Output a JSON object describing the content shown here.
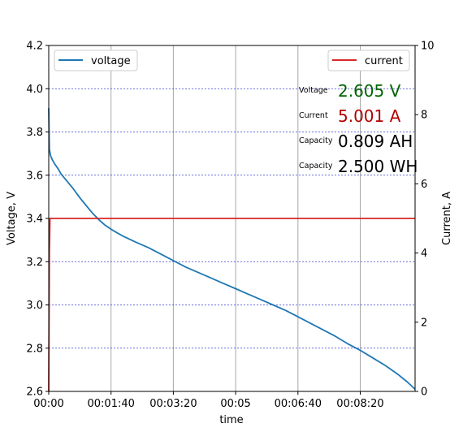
{
  "chart_data": {
    "type": "line",
    "xlabel": "time",
    "ylabel_left": "Voltage, V",
    "ylabel_right": "Current, A",
    "x_unit": "seconds",
    "xlim": [
      0,
      588
    ],
    "ylim_left": [
      2.6,
      4.2
    ],
    "ylim_right": [
      0,
      10
    ],
    "x_ticks": [
      0,
      100,
      200,
      300,
      400,
      500
    ],
    "x_tick_labels": [
      "00:00",
      "00:01:40",
      "00:03:20",
      "00:05",
      "00:06:40",
      "00:08:20"
    ],
    "y_left_ticks": [
      "2.6",
      "2.8",
      "3.0",
      "3.2",
      "3.4",
      "3.6",
      "3.8",
      "4.0",
      "4.2"
    ],
    "y_right_ticks": [
      "0",
      "2",
      "4",
      "6",
      "8",
      "10"
    ],
    "grid": {
      "x": true,
      "y_left": true,
      "style_y": "dashed blue",
      "style_x": "solid gray"
    },
    "legend_left": {
      "label": "voltage",
      "position": "top-left"
    },
    "legend_right": {
      "label": "current",
      "position": "top-right"
    },
    "series": [
      {
        "name": "voltage",
        "axis": "left",
        "color": "#1f77b4",
        "x": [
          0,
          1,
          3,
          6,
          10,
          15,
          20,
          30,
          40,
          50,
          60,
          70,
          80,
          90,
          100,
          110,
          120,
          140,
          160,
          180,
          200,
          220,
          240,
          260,
          280,
          300,
          320,
          340,
          360,
          380,
          400,
          420,
          440,
          460,
          480,
          500,
          520,
          540,
          560,
          575,
          588
        ],
        "values": [
          3.91,
          3.72,
          3.69,
          3.67,
          3.65,
          3.63,
          3.605,
          3.57,
          3.535,
          3.495,
          3.46,
          3.425,
          3.395,
          3.37,
          3.35,
          3.333,
          3.317,
          3.29,
          3.265,
          3.235,
          3.205,
          3.175,
          3.15,
          3.125,
          3.1,
          3.075,
          3.05,
          3.025,
          3.0,
          2.975,
          2.945,
          2.915,
          2.885,
          2.855,
          2.82,
          2.79,
          2.755,
          2.72,
          2.68,
          2.645,
          2.61
        ]
      },
      {
        "name": "current",
        "axis": "right",
        "color": "#d62728",
        "x": [
          0,
          1,
          2,
          3,
          588
        ],
        "values": [
          0.0,
          4.0,
          5.0,
          5.0,
          5.0
        ]
      }
    ]
  },
  "readout": {
    "voltage_label": "Voltage",
    "voltage_value": "2.605 V",
    "voltage_color": "#006400",
    "current_label": "Current",
    "current_value": "5.001 A",
    "current_color": "#b30000",
    "capacity_ah_label": "Capacity",
    "capacity_ah_value": "0.809 AH",
    "capacity_wh_label": "Capacity",
    "capacity_wh_value": "2.500 WH"
  }
}
